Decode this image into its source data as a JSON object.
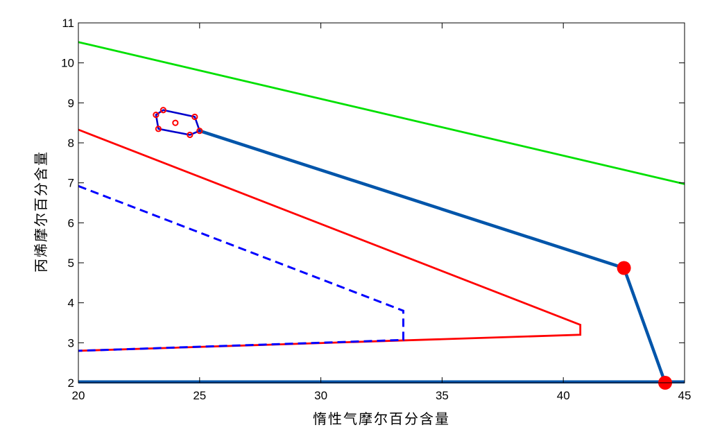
{
  "chart_data": {
    "type": "line",
    "title": "",
    "xlabel": "惰性气摩尔百分含量",
    "ylabel": "丙烯摩尔百分含量",
    "xlim": [
      20,
      45
    ],
    "ylim": [
      2,
      11
    ],
    "xticks": [
      20,
      25,
      30,
      35,
      40,
      45
    ],
    "yticks": [
      2,
      3,
      4,
      5,
      6,
      7,
      8,
      9,
      10,
      11
    ],
    "grid": false,
    "legend": "none",
    "series": [
      {
        "style": "solid",
        "color": "#00e000",
        "x": [
          20,
          45
        ],
        "y": [
          10.52,
          6.97
        ]
      },
      {
        "style": "solid",
        "color": "#ff0000",
        "x": [
          20,
          40.7,
          40.7,
          40.7,
          20
        ],
        "y": [
          8.33,
          3.45,
          3.2,
          3.2,
          2.8
        ]
      },
      {
        "style": "dashed",
        "color": "#0000ff",
        "x": [
          20,
          33.4,
          33.4,
          20
        ],
        "y": [
          6.92,
          3.8,
          3.07,
          2.8
        ]
      },
      {
        "style": "thick",
        "color": "#0055aa",
        "x": [
          25.0,
          42.5,
          44.2
        ],
        "y": [
          8.3,
          4.87,
          2.0
        ]
      },
      {
        "style": "thick",
        "color": "#0055aa",
        "x": [
          20,
          45
        ],
        "y": [
          2.02,
          2.02
        ]
      },
      {
        "style": "polygon",
        "color": "#0000cc",
        "x": [
          23.2,
          23.5,
          24.8,
          25.0,
          24.6,
          23.3
        ],
        "y": [
          8.7,
          8.82,
          8.65,
          8.3,
          8.2,
          8.35
        ]
      }
    ],
    "highlight_points": {
      "color": "#ff0000",
      "x": [
        42.5,
        44.2
      ],
      "y": [
        4.87,
        2.0
      ]
    },
    "polygon_markers": {
      "color": "#ff0000",
      "x": [
        23.2,
        23.5,
        24.8,
        25.0,
        24.6,
        23.3,
        24.0
      ],
      "y": [
        8.7,
        8.82,
        8.65,
        8.3,
        8.2,
        8.35,
        8.5
      ]
    }
  }
}
